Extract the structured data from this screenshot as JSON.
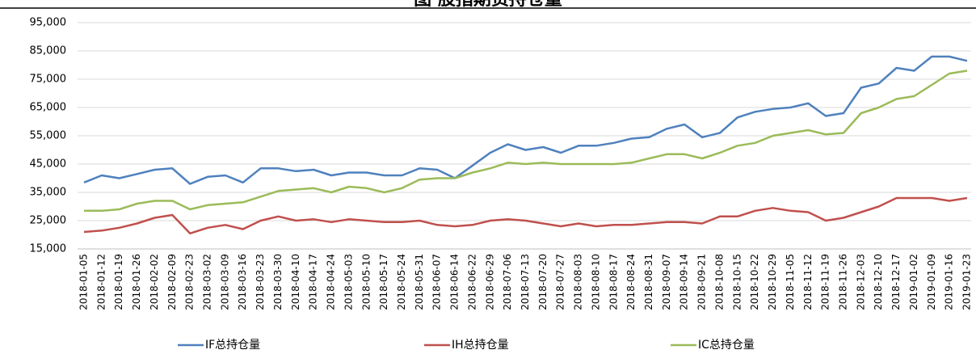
{
  "chart_data": {
    "type": "line",
    "title": "图 股指期货持仓量",
    "categories": [
      "2018-01-05",
      "2018-01-12",
      "2018-01-19",
      "2018-01-26",
      "2018-02-02",
      "2018-02-09",
      "2018-02-23",
      "2018-03-02",
      "2018-03-09",
      "2018-03-16",
      "2018-03-23",
      "2018-03-30",
      "2018-04-10",
      "2018-04-17",
      "2018-04-24",
      "2018-05-03",
      "2018-05-10",
      "2018-05-17",
      "2018-05-24",
      "2018-05-31",
      "2018-06-07",
      "2018-06-14",
      "2018-06-22",
      "2018-06-29",
      "2018-07-06",
      "2018-07-13",
      "2018-07-20",
      "2018-07-27",
      "2018-08-03",
      "2018-08-10",
      "2018-08-17",
      "2018-08-24",
      "2018-08-31",
      "2018-09-07",
      "2018-09-14",
      "2018-09-21",
      "2018-10-08",
      "2018-10-15",
      "2018-10-22",
      "2018-10-29",
      "2018-11-05",
      "2018-11-12",
      "2018-11-19",
      "2018-11-26",
      "2018-12-03",
      "2018-12-10",
      "2018-12-17",
      "2019-01-02",
      "2019-01-09",
      "2019-01-16",
      "2019-01-23"
    ],
    "series": [
      {
        "name": "IF总持仓量",
        "color": "#4f81bd",
        "values": [
          38500,
          41000,
          40000,
          41500,
          43000,
          43500,
          38000,
          40500,
          41000,
          38500,
          43500,
          43500,
          42500,
          43000,
          41000,
          42000,
          42000,
          41000,
          41000,
          43500,
          43000,
          40000,
          44500,
          49000,
          52000,
          50000,
          51000,
          49000,
          51500,
          51500,
          52500,
          54000,
          54500,
          57500,
          59000,
          54500,
          56000,
          61500,
          63500,
          64500,
          65000,
          66500,
          62000,
          63000,
          72000,
          73500,
          79000,
          78000,
          83000,
          83000,
          81500
        ]
      },
      {
        "name": "IH总持仓量",
        "color": "#c0504d",
        "values": [
          21000,
          21500,
          22500,
          24000,
          26000,
          27000,
          20500,
          22500,
          23500,
          22000,
          25000,
          26500,
          25000,
          25500,
          24500,
          25500,
          25000,
          24500,
          24500,
          25000,
          23500,
          23000,
          23500,
          25000,
          25500,
          25000,
          24000,
          23000,
          24000,
          23000,
          23500,
          23500,
          24000,
          24500,
          24500,
          24000,
          26500,
          26500,
          28500,
          29500,
          28500,
          28000,
          25000,
          26000,
          28000,
          30000,
          33000,
          33000,
          33000,
          32000,
          33000
        ]
      },
      {
        "name": "IC总持仓量",
        "color": "#9bbb59",
        "values": [
          28500,
          28500,
          29000,
          31000,
          32000,
          32000,
          29000,
          30500,
          31000,
          31500,
          33500,
          35500,
          36000,
          36500,
          35000,
          37000,
          36500,
          35000,
          36500,
          39500,
          40000,
          40000,
          42000,
          43500,
          45500,
          45000,
          45500,
          45000,
          45000,
          45000,
          45000,
          45500,
          47000,
          48500,
          48500,
          47000,
          49000,
          51500,
          52500,
          55000,
          56000,
          57000,
          55500,
          56000,
          63000,
          65000,
          68000,
          69000,
          73000,
          77000,
          78000
        ]
      }
    ],
    "ylim": [
      15000,
      95000
    ],
    "yticks": [
      {
        "value": 15000,
        "label": "15,000"
      },
      {
        "value": 25000,
        "label": "25,000"
      },
      {
        "value": 35000,
        "label": "35,000"
      },
      {
        "value": 45000,
        "label": "45,000"
      },
      {
        "value": 55000,
        "label": "55,000"
      },
      {
        "value": 65000,
        "label": "65,000"
      },
      {
        "value": 75000,
        "label": "75,000"
      },
      {
        "value": 85000,
        "label": "85,000"
      },
      {
        "value": 95000,
        "label": "95,000"
      }
    ],
    "grid": true
  }
}
